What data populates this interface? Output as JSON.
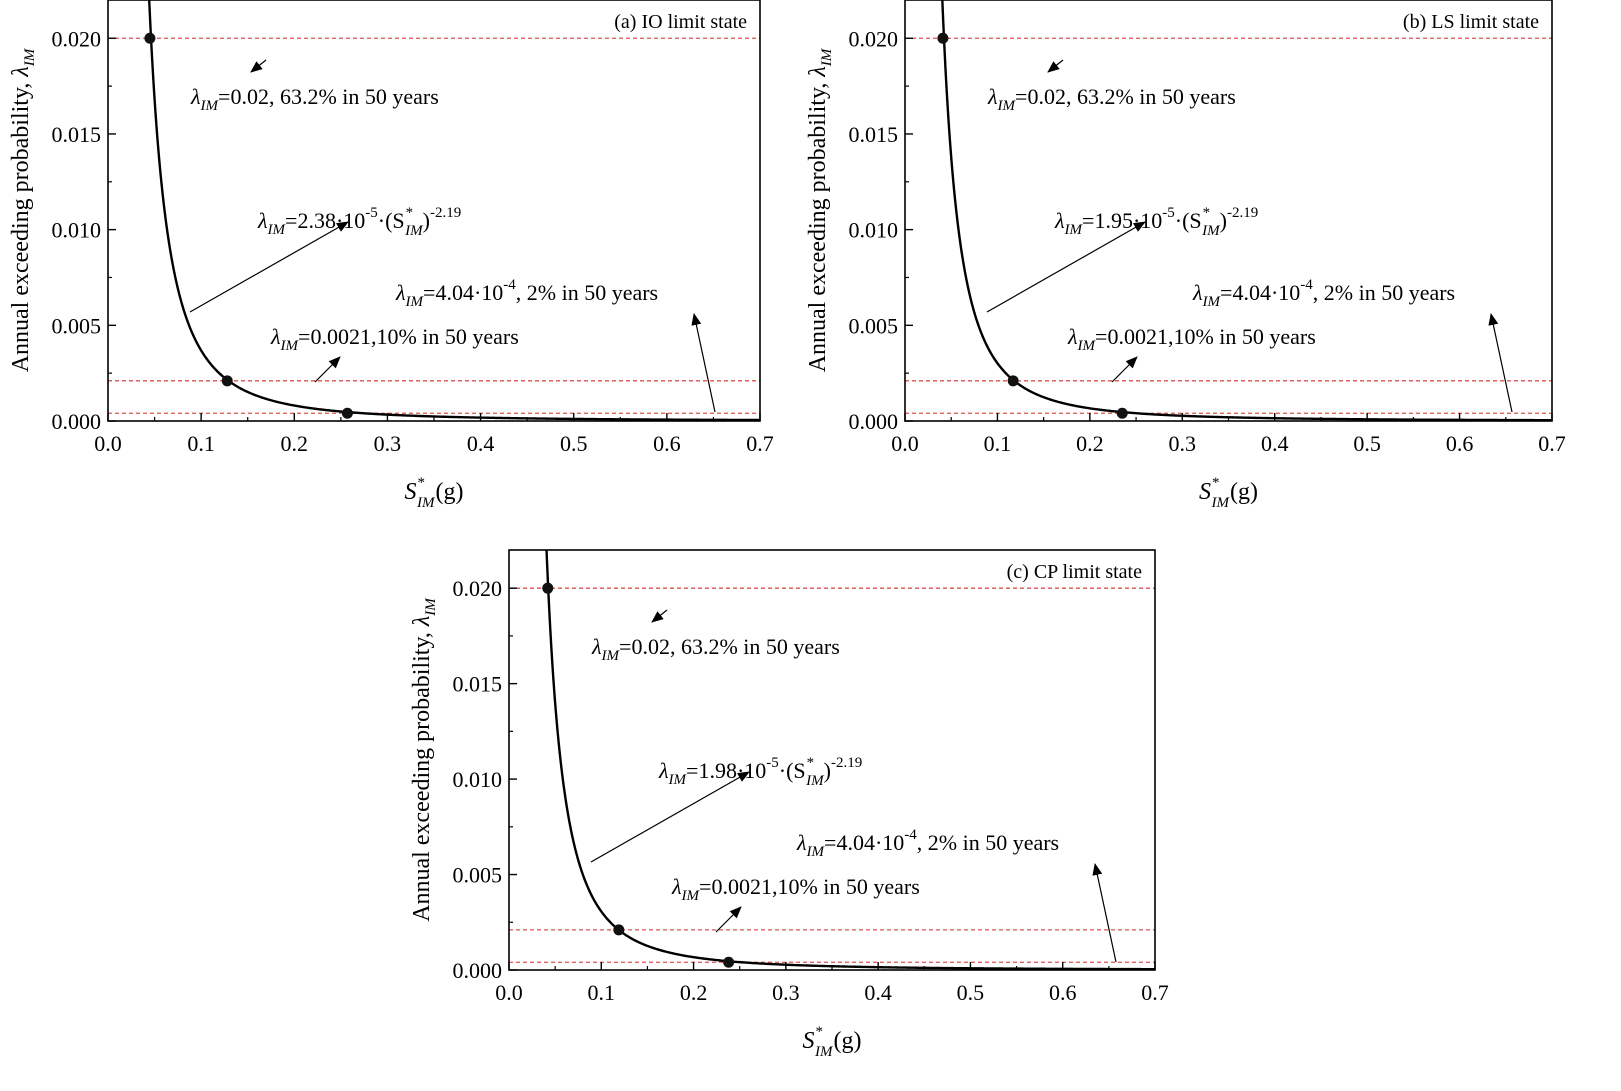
{
  "chart_data": [
    {
      "type": "line",
      "panel_label": "(a) IO limit state",
      "xlabel": {
        "main": "S",
        "sup": "*",
        "sub": "IM",
        "tail": "(g)"
      },
      "ylabel": {
        "main": "Annual exceeding probability, ",
        "sym": "λ",
        "sub": "IM"
      },
      "xlim": [
        0.0,
        0.7
      ],
      "ylim": [
        0.0,
        0.022
      ],
      "x_ticks": [
        "0.0",
        "0.1",
        "0.2",
        "0.3",
        "0.4",
        "0.5",
        "0.6",
        "0.7"
      ],
      "y_ticks": [
        "0.000",
        "0.005",
        "0.010",
        "0.015",
        "0.020"
      ],
      "grid": false,
      "curve": {
        "coefficient": 2.38e-05,
        "exponent": -2.19
      },
      "reference_lines": [
        0.02,
        0.0021,
        0.000404
      ],
      "points": [
        {
          "x": 0.045,
          "y": 0.02
        },
        {
          "x": 0.128,
          "y": 0.0021
        },
        {
          "x": 0.257,
          "y": 0.000404
        }
      ],
      "annotations": {
        "eq": {
          "lam": "λ",
          "sub": "IM",
          "t1": "=2.38·10",
          "sup1": "-5",
          "t2": "·(S",
          "sup2": "*",
          "sub2": "IM",
          "t3": ")",
          "sup3": "-2.19"
        },
        "a002": {
          "lam": "λ",
          "sub": "IM",
          "text": "=0.02, 63.2% in 50 years"
        },
        "a0021": {
          "lam": "λ",
          "sub": "IM",
          "text": "=0.0021,10% in 50 years"
        },
        "a404": {
          "lam": "λ",
          "sub": "IM",
          "t1": "=4.04·10",
          "sup": "-4",
          "t2": ", 2% in 50 years"
        }
      }
    },
    {
      "type": "line",
      "panel_label": "(b) LS limit state",
      "xlabel": {
        "main": "S",
        "sup": "*",
        "sub": "IM",
        "tail": "(g)"
      },
      "ylabel": {
        "main": "Annual exceeding probability, ",
        "sym": "λ",
        "sub": "IM"
      },
      "xlim": [
        0.0,
        0.7
      ],
      "ylim": [
        0.0,
        0.022
      ],
      "x_ticks": [
        "0.0",
        "0.1",
        "0.2",
        "0.3",
        "0.4",
        "0.5",
        "0.6",
        "0.7"
      ],
      "y_ticks": [
        "0.000",
        "0.005",
        "0.010",
        "0.015",
        "0.020"
      ],
      "grid": false,
      "curve": {
        "coefficient": 1.95e-05,
        "exponent": -2.19
      },
      "reference_lines": [
        0.02,
        0.0021,
        0.000404
      ],
      "points": [
        {
          "x": 0.041,
          "y": 0.02
        },
        {
          "x": 0.117,
          "y": 0.0021
        },
        {
          "x": 0.235,
          "y": 0.000404
        }
      ],
      "annotations": {
        "eq": {
          "lam": "λ",
          "sub": "IM",
          "t1": "=1.95·10",
          "sup1": "-5",
          "t2": "·(S",
          "sup2": "*",
          "sub2": "IM",
          "t3": ")",
          "sup3": "-2.19"
        },
        "a002": {
          "lam": "λ",
          "sub": "IM",
          "text": "=0.02, 63.2% in 50 years"
        },
        "a0021": {
          "lam": "λ",
          "sub": "IM",
          "text": "=0.0021,10% in 50 years"
        },
        "a404": {
          "lam": "λ",
          "sub": "IM",
          "t1": "=4.04·10",
          "sup": "-4",
          "t2": ", 2% in 50 years"
        }
      }
    },
    {
      "type": "line",
      "panel_label": "(c) CP limit state",
      "xlabel": {
        "main": "S",
        "sup": "*",
        "sub": "IM",
        "tail": "(g)"
      },
      "ylabel": {
        "main": "Annual exceeding probability, ",
        "sym": "λ",
        "sub": "IM"
      },
      "xlim": [
        0.0,
        0.7
      ],
      "ylim": [
        0.0,
        0.022
      ],
      "x_ticks": [
        "0.0",
        "0.1",
        "0.2",
        "0.3",
        "0.4",
        "0.5",
        "0.6",
        "0.7"
      ],
      "y_ticks": [
        "0.000",
        "0.005",
        "0.010",
        "0.015",
        "0.020"
      ],
      "grid": false,
      "curve": {
        "coefficient": 1.98e-05,
        "exponent": -2.19
      },
      "reference_lines": [
        0.02,
        0.0021,
        0.000404
      ],
      "points": [
        {
          "x": 0.042,
          "y": 0.02
        },
        {
          "x": 0.119,
          "y": 0.0021
        },
        {
          "x": 0.238,
          "y": 0.000404
        }
      ],
      "annotations": {
        "eq": {
          "lam": "λ",
          "sub": "IM",
          "t1": "=1.98·10",
          "sup1": "-5",
          "t2": "·(S",
          "sup2": "*",
          "sub2": "IM",
          "t3": ")",
          "sup3": "-2.19"
        },
        "a002": {
          "lam": "λ",
          "sub": "IM",
          "text": "=0.02, 63.2% in 50 years"
        },
        "a0021": {
          "lam": "λ",
          "sub": "IM",
          "text": "=0.0021,10% in 50 years"
        },
        "a404": {
          "lam": "λ",
          "sub": "IM",
          "t1": "=4.04·10",
          "sup": "-4",
          "t2": ", 2% in 50 years"
        }
      }
    }
  ],
  "colors": {
    "curve": "#000000",
    "reference_line": "#d9534f",
    "marker": "#111111",
    "frame": "#000000"
  }
}
